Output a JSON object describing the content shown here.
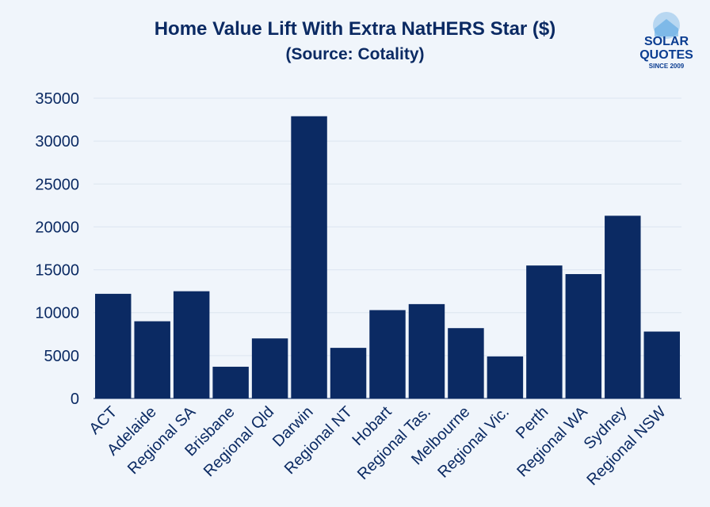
{
  "chart_data": {
    "type": "bar",
    "title": "Home Value Lift With Extra NatHERS Star ($)",
    "subtitle": "(Source: Cotality)",
    "xlabel": "",
    "ylabel": "",
    "ylim": [
      0,
      35000
    ],
    "yticks": [
      0,
      5000,
      10000,
      15000,
      20000,
      25000,
      30000,
      35000
    ],
    "grid": true,
    "categories": [
      "ACT",
      "Adelaide",
      "Regional SA",
      "Brisbane",
      "Regional Qld",
      "Darwin",
      "Regional NT",
      "Hobart",
      "Regional Tas.",
      "Melbourne",
      "Regional Vic.",
      "Perth",
      "Regional WA",
      "Sydney",
      "Regional NSW"
    ],
    "values": [
      12200,
      9000,
      12500,
      3700,
      7000,
      32900,
      5900,
      10300,
      11000,
      8200,
      4900,
      15500,
      14500,
      21300,
      7800
    ],
    "bar_color": "#0b2a63"
  },
  "logo": {
    "line1": "SOLAR",
    "line2": "QUOTES",
    "tagline": "SINCE 2009",
    "color": "#0b3d91",
    "accent": "#4fa0e0"
  }
}
